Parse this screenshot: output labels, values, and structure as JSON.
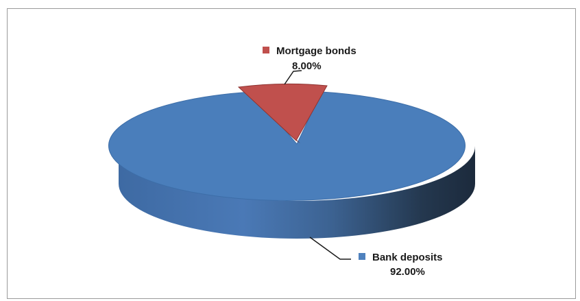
{
  "chart_data": {
    "type": "pie",
    "style": "3d-exploded",
    "title": "",
    "slices": [
      {
        "label": "Mortgage bonds",
        "value": 8.0,
        "display": "8.00%",
        "color": "#c0504d"
      },
      {
        "label": "Bank deposits",
        "value": 92.0,
        "display": "92.00%",
        "color": "#4f81bd"
      }
    ],
    "legend": "data labels with leader lines"
  }
}
